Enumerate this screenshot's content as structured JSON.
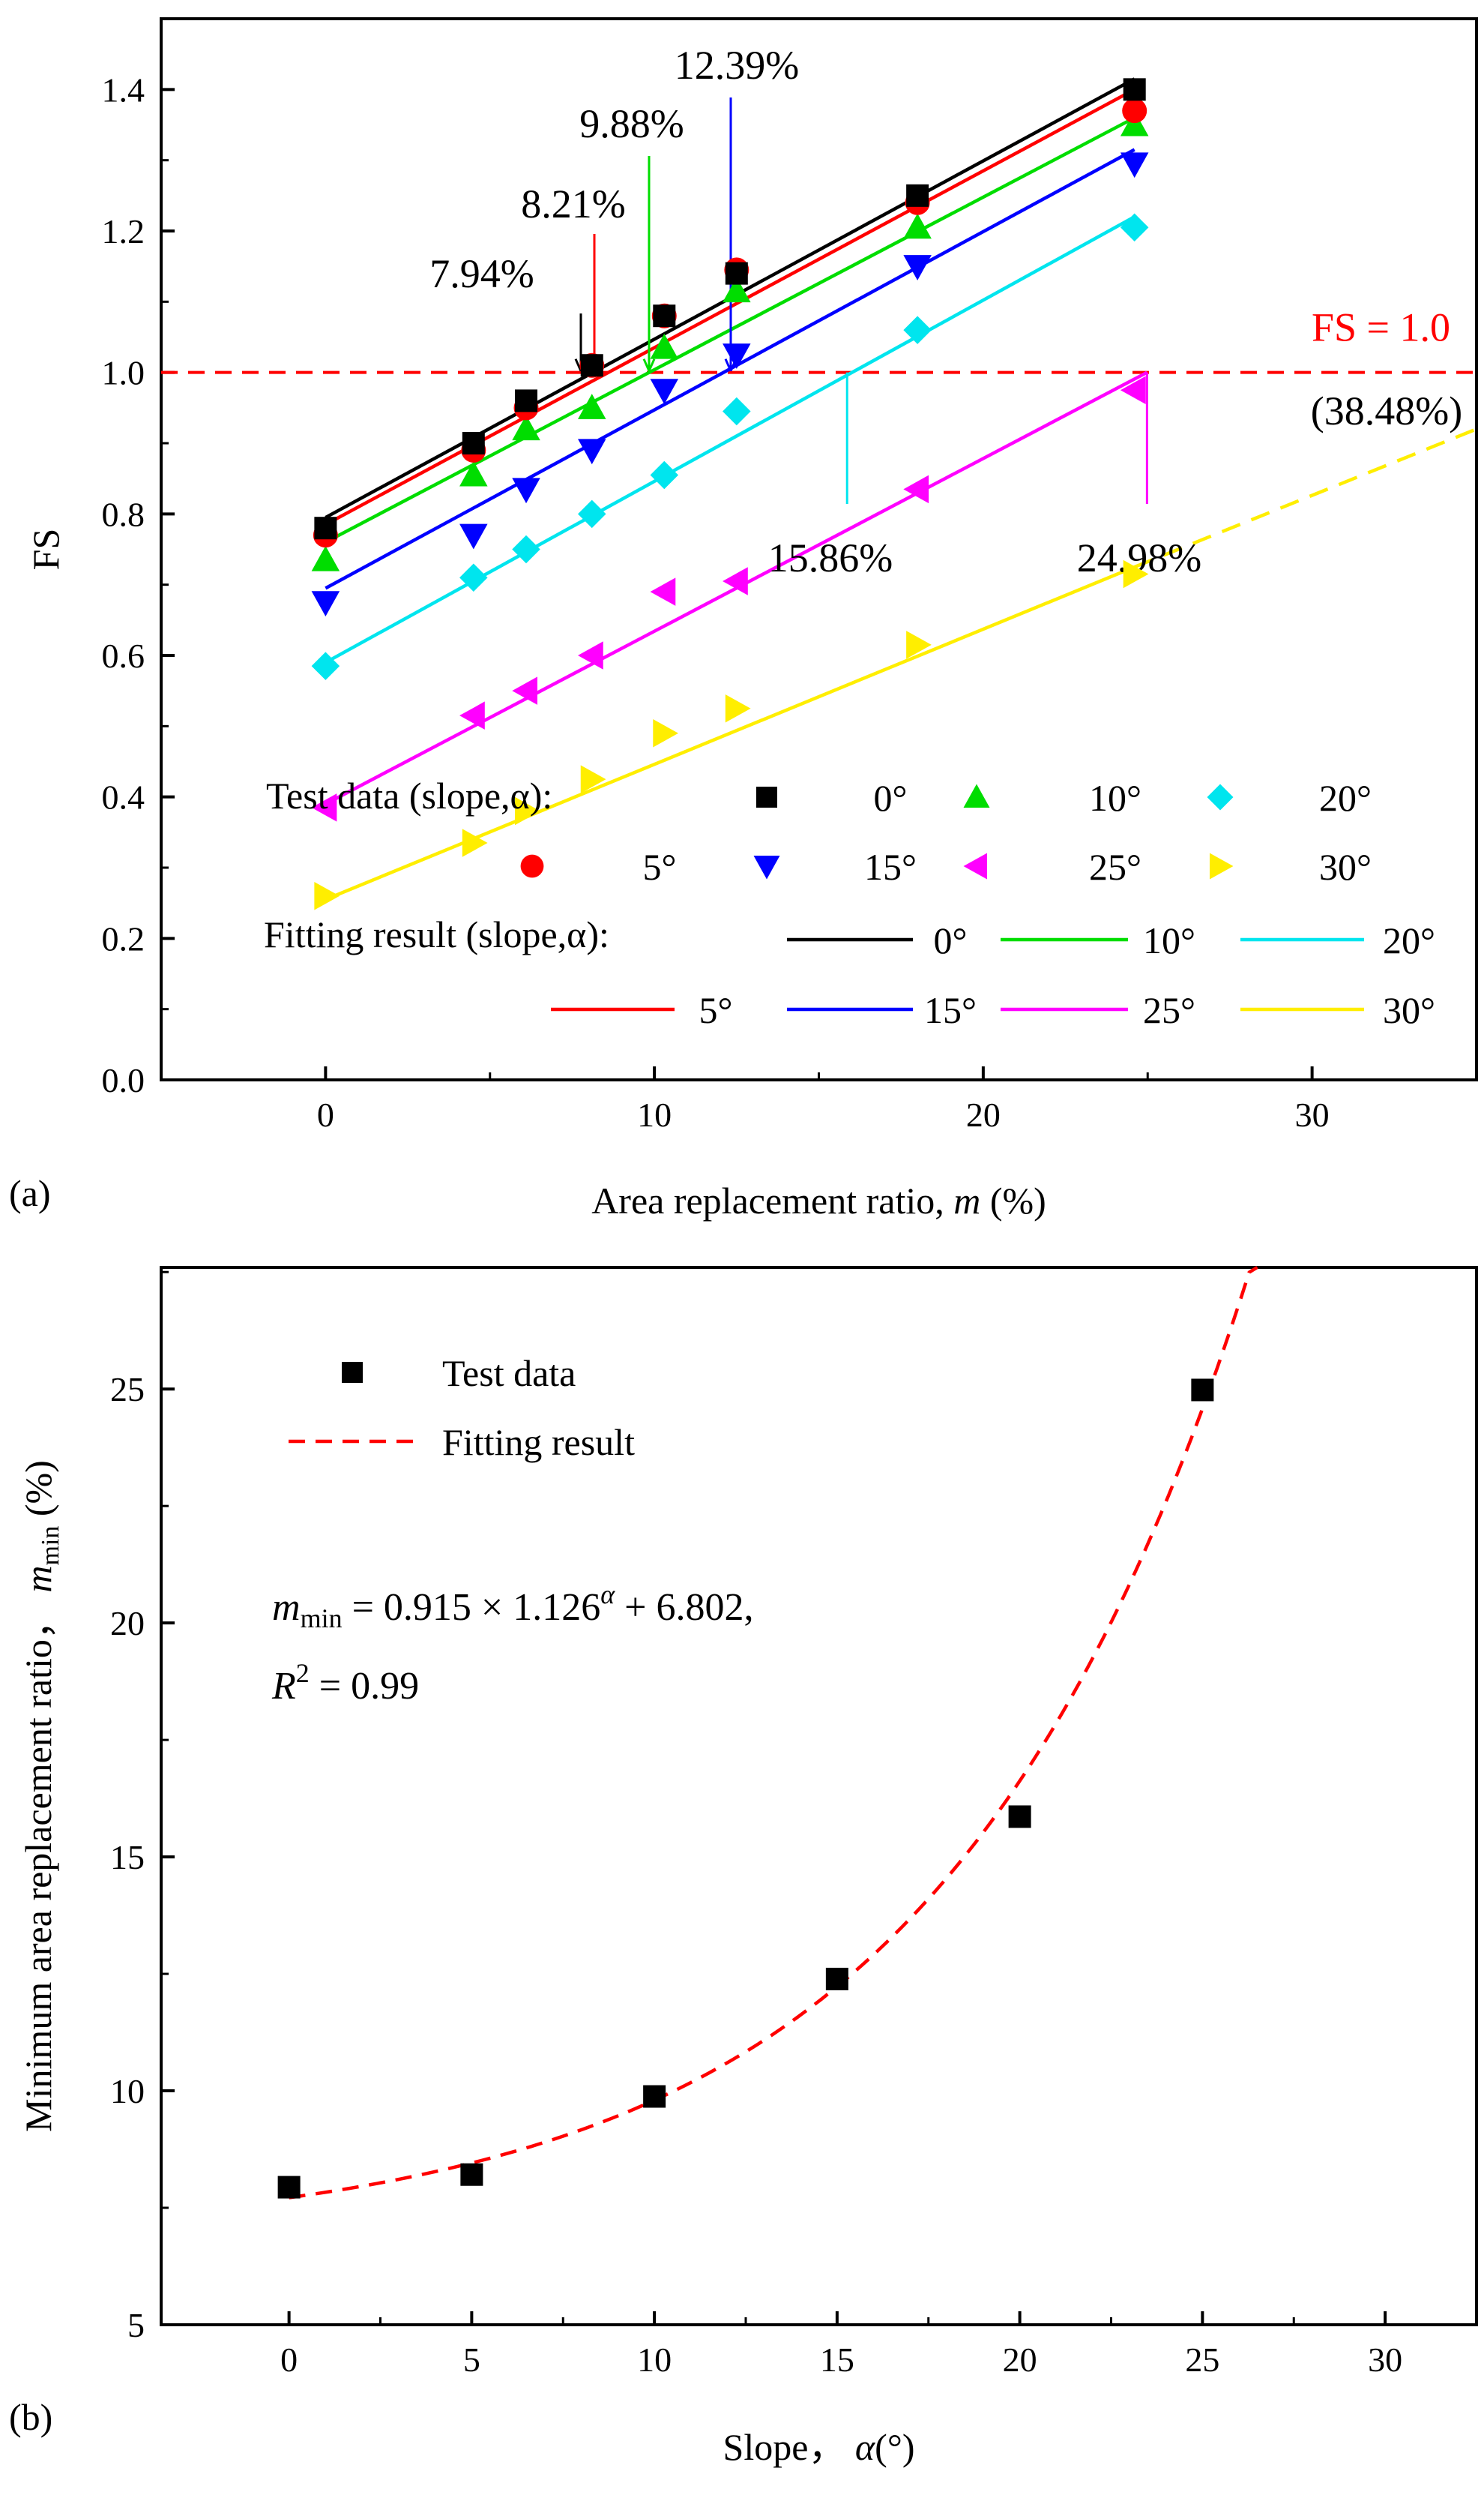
{
  "figure": {
    "panel_a_label": "(a)",
    "panel_b_label": "(b)"
  },
  "chart_data": [
    {
      "type": "scatter",
      "panel": "(a)",
      "title": "",
      "xlabel": "Area replacement ratio, m (%)",
      "xlabel_parts": {
        "prefix": "Area replacement ratio, ",
        "var": "m",
        "suffix": " (%)"
      },
      "ylabel": "FS",
      "xlim": [
        -5,
        35
      ],
      "ylim": [
        0.0,
        1.5
      ],
      "xticks": [
        0,
        10,
        20,
        30
      ],
      "yticks": [
        0.0,
        0.2,
        0.4,
        0.6,
        0.8,
        1.0,
        1.2,
        1.4
      ],
      "ytick_labels": [
        "0.0",
        "0.2",
        "0.4",
        "0.6",
        "0.8",
        "1.0",
        "1.2",
        "1.4"
      ],
      "grid": false,
      "reference_line": {
        "y": 1.0,
        "label": "FS = 1.0",
        "color": "#ff0000",
        "style": "dashed"
      },
      "legend": {
        "test_label": "Test data (slope,α):",
        "fit_label": "Fitting result (slope,α):",
        "placement": "bottom"
      },
      "series": [
        {
          "name": "0°",
          "color": "#000000",
          "marker": "square",
          "test_x": [
            0,
            4.5,
            6.1,
            8.1,
            10.3,
            12.5,
            18.0,
            24.6
          ],
          "test_y": [
            0.78,
            0.9,
            0.96,
            1.01,
            1.08,
            1.14,
            1.25,
            1.4
          ],
          "fit": {
            "x": [
              0,
              24.6
            ],
            "y": [
              0.795,
              1.415
            ]
          }
        },
        {
          "name": "5°",
          "color": "#ff0000",
          "marker": "circle",
          "test_x": [
            0,
            4.5,
            6.1,
            8.1,
            10.3,
            12.5,
            18.0,
            24.6
          ],
          "test_y": [
            0.77,
            0.89,
            0.95,
            1.01,
            1.08,
            1.145,
            1.24,
            1.37
          ],
          "fit": {
            "x": [
              0,
              24.6
            ],
            "y": [
              0.785,
              1.4
            ]
          }
        },
        {
          "name": "10°",
          "color": "#00dd00",
          "marker": "triangle-up",
          "test_x": [
            0,
            4.5,
            6.1,
            8.1,
            10.3,
            12.5,
            18.0,
            24.6
          ],
          "test_y": [
            0.735,
            0.855,
            0.92,
            0.95,
            1.035,
            1.115,
            1.205,
            1.35
          ],
          "fit": {
            "x": [
              0,
              24.6
            ],
            "y": [
              0.76,
              1.36
            ]
          }
        },
        {
          "name": "15°",
          "color": "#0000ff",
          "marker": "triangle-down",
          "test_x": [
            0,
            4.5,
            6.1,
            8.1,
            10.3,
            12.5,
            18.0,
            24.6
          ],
          "test_y": [
            0.675,
            0.77,
            0.835,
            0.89,
            0.975,
            1.025,
            1.15,
            1.295
          ],
          "fit": {
            "x": [
              0,
              24.6
            ],
            "y": [
              0.695,
              1.315
            ]
          }
        },
        {
          "name": "20°",
          "color": "#00e5ee",
          "marker": "diamond",
          "test_x": [
            0,
            4.5,
            6.1,
            8.1,
            10.3,
            12.5,
            18.0,
            24.6
          ],
          "test_y": [
            0.585,
            0.71,
            0.75,
            0.8,
            0.855,
            0.945,
            1.06,
            1.205
          ],
          "fit": {
            "x": [
              0,
              24.6
            ],
            "y": [
              0.59,
              1.22
            ]
          }
        },
        {
          "name": "25°",
          "color": "#ff00ff",
          "marker": "triangle-left",
          "test_x": [
            0,
            4.5,
            6.1,
            8.1,
            10.3,
            12.5,
            18.0,
            24.6
          ],
          "test_y": [
            0.385,
            0.515,
            0.55,
            0.6,
            0.69,
            0.705,
            0.835,
            0.975
          ],
          "fit": {
            "x": [
              0,
              24.98
            ],
            "y": [
              0.39,
              1.0
            ]
          }
        },
        {
          "name": "30°",
          "color": "#ffee00",
          "marker": "triangle-right",
          "test_x": [
            0,
            4.5,
            6.1,
            8.1,
            10.3,
            12.5,
            18.0,
            24.6
          ],
          "test_y": [
            0.26,
            0.335,
            0.38,
            0.425,
            0.49,
            0.525,
            0.615,
            0.715
          ],
          "fit": {
            "x": [
              0,
              24.6
            ],
            "y": [
              0.255,
              0.725
            ]
          },
          "extrapolation": {
            "x": [
              24.6,
              35
            ],
            "y": [
              0.725,
              0.92
            ],
            "style": "dashed"
          }
        }
      ],
      "annotations": [
        {
          "text": "7.94%",
          "x": 7.94,
          "color": "#000000"
        },
        {
          "text": "8.21%",
          "x": 8.21,
          "color": "#ff0000"
        },
        {
          "text": "9.88%",
          "x": 9.88,
          "color": "#00dd00"
        },
        {
          "text": "12.39%",
          "x": 12.39,
          "color": "#0000ff"
        },
        {
          "text": "15.86%",
          "x": 15.86,
          "color": "#00e5ee"
        },
        {
          "text": "24.98%",
          "x": 24.98,
          "color": "#ff00ff"
        },
        {
          "text": "(38.48%)",
          "x": 38.48,
          "color": "#ffee00"
        }
      ]
    },
    {
      "type": "scatter",
      "panel": "(b)",
      "title": "",
      "xlabel": "Slope， α(°)",
      "xlabel_parts": {
        "prefix": "Slope， ",
        "var": "α",
        "suffix": "(°)"
      },
      "ylabel": "Minimum area replacement ratio， m_min (%)",
      "ylabel_parts": {
        "prefix": "Minimum area replacement ratio， ",
        "var": "m",
        "sub": "min",
        "suffix": " (%)"
      },
      "xlim": [
        -3.5,
        32.5
      ],
      "ylim": [
        5,
        27.6
      ],
      "xticks": [
        0,
        5,
        10,
        15,
        20,
        25,
        30
      ],
      "yticks": [
        5,
        10,
        15,
        20,
        25
      ],
      "grid": false,
      "legend": {
        "entries": [
          "Test data",
          "Fitting result"
        ],
        "placement": "top-left"
      },
      "test_data": {
        "name": "Test data",
        "color": "#000000",
        "marker": "square",
        "x": [
          0,
          5,
          10,
          15,
          20,
          25
        ],
        "y": [
          7.94,
          8.21,
          9.88,
          12.39,
          15.86,
          24.98
        ]
      },
      "fit": {
        "name": "Fitting result",
        "color": "#ff0000",
        "style": "dashed",
        "a": 0.915,
        "b": 1.126,
        "c": 6.802,
        "x_range": [
          0,
          26.5
        ]
      },
      "equation": {
        "line1_var": "m",
        "line1_sub": "min",
        "line1_mid": " = 0.915 × 1.126",
        "line1_sup": "α",
        "line1_end": " + 6.802,",
        "line2_var": "R",
        "line2_sup": "2",
        "line2_end": " = 0.99"
      }
    }
  ]
}
